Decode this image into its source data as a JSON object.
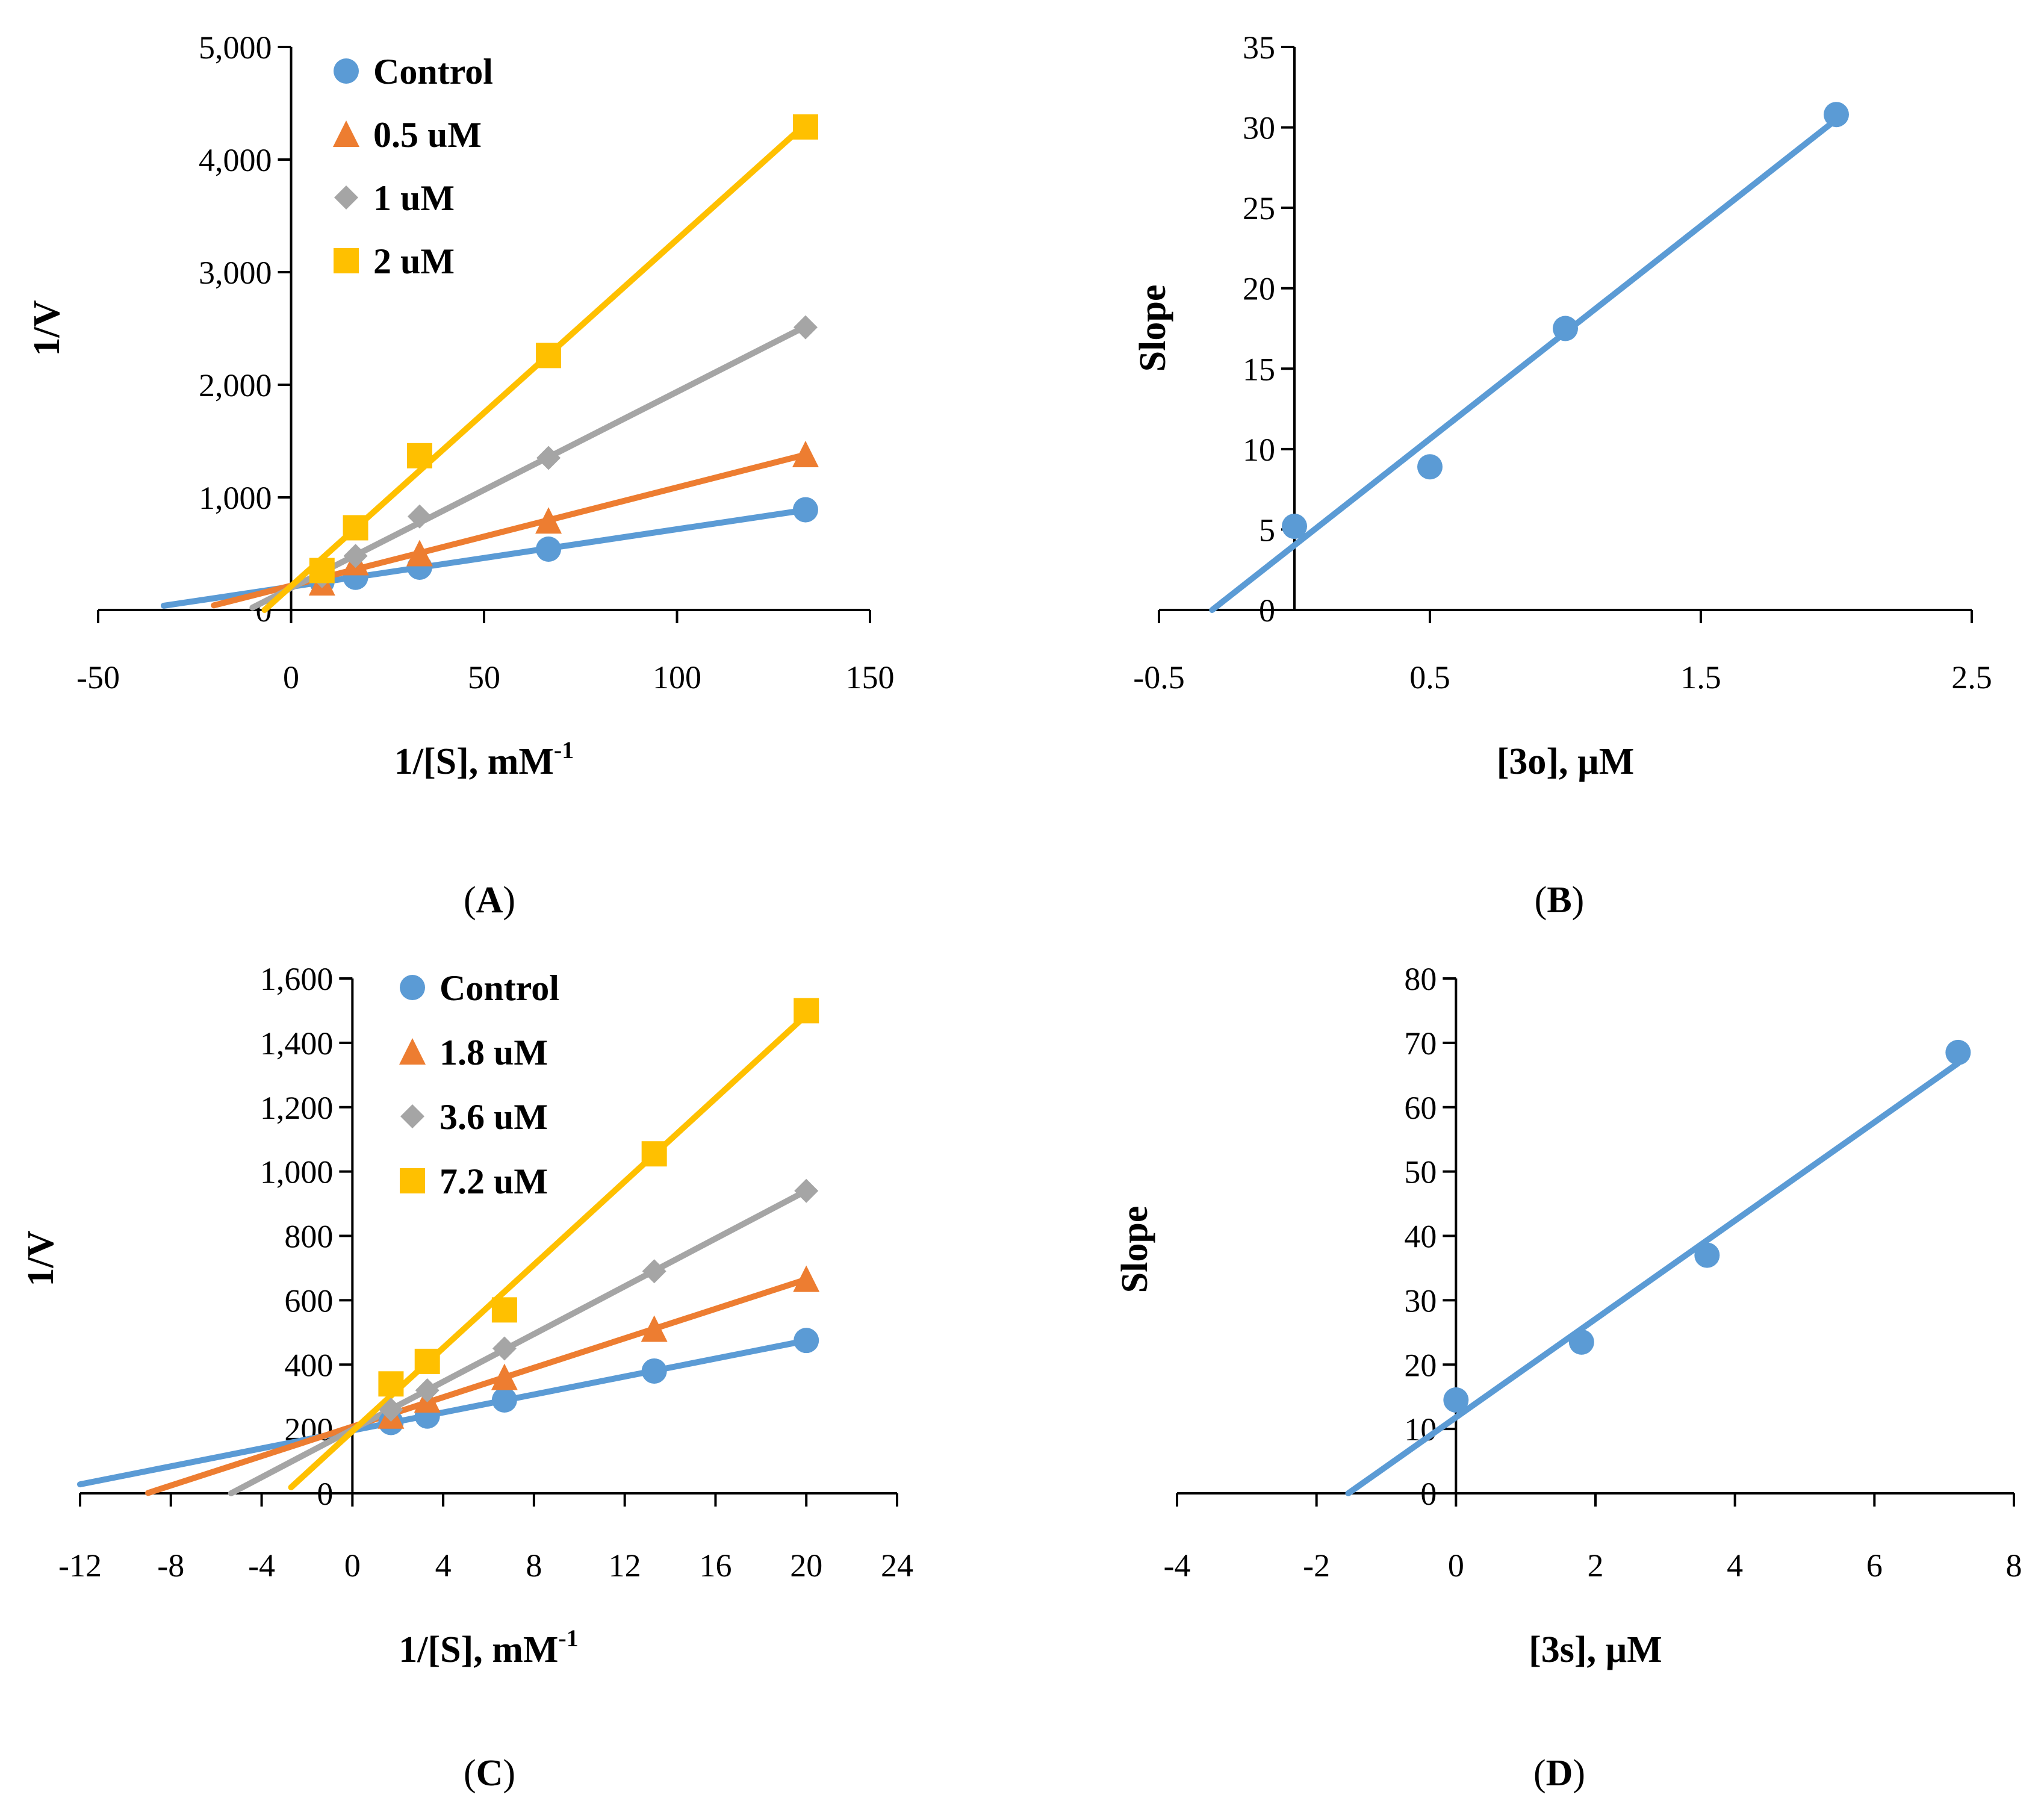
{
  "chart_data": [
    {
      "type": "scatter",
      "panel_label": "(A)",
      "label_open": "(",
      "label_letter": "A",
      "label_close": ")",
      "xlabel": "1/[S], mM",
      "xlabel_sup": "-1",
      "ylabel": "1/V",
      "xlim": [
        -50,
        150
      ],
      "ylim": [
        0,
        5000
      ],
      "x_ticks": [
        -50,
        0,
        50,
        100,
        150
      ],
      "x_tick_labels": [
        "-50",
        "0",
        "50",
        "100",
        "150"
      ],
      "y_ticks": [
        0,
        1000,
        2000,
        3000,
        4000,
        5000
      ],
      "y_tick_labels": [
        "0",
        "1,000",
        "2,000",
        "3,000",
        "4,000",
        "5,000"
      ],
      "legend_position": "top-left",
      "series": [
        {
          "name": "Control",
          "color": "#5B9BD5",
          "marker": "circle",
          "x": [
            8,
            16.7,
            33.3,
            66.7,
            133.3
          ],
          "y": [
            250,
            290,
            380,
            540,
            890
          ],
          "fit": {
            "x": [
              -33,
              133.3
            ]
          }
        },
        {
          "name": "0.5 uM",
          "color": "#ED7D31",
          "marker": "triangle",
          "x": [
            8,
            16.7,
            33.3,
            66.7,
            133.3
          ],
          "y": [
            240,
            420,
            500,
            790,
            1380
          ],
          "fit": {
            "x": [
              -20,
              133.3
            ]
          }
        },
        {
          "name": "1 uM",
          "color": "#A5A5A5",
          "marker": "diamond",
          "x": [
            8,
            16.7,
            33.3,
            66.7,
            133.3
          ],
          "y": [
            300,
            480,
            830,
            1350,
            2510
          ],
          "fit": {
            "x": [
              -10,
              133.3
            ]
          }
        },
        {
          "name": "2 uM",
          "color": "#FFC000",
          "marker": "square",
          "x": [
            8,
            16.7,
            33.3,
            66.7,
            133.3
          ],
          "y": [
            350,
            730,
            1370,
            2260,
            4290
          ],
          "fit": {
            "x": [
              -7,
              133.3
            ]
          }
        }
      ]
    },
    {
      "type": "scatter",
      "panel_label": "(B)",
      "label_open": "(",
      "label_letter": "B",
      "label_close": ")",
      "xlabel": "[3o], µM",
      "xlabel_sup": "",
      "ylabel": "Slope",
      "xlim": [
        -0.5,
        2.5
      ],
      "ylim": [
        0,
        35
      ],
      "x_ticks": [
        -0.5,
        0.5,
        1.5,
        2.5
      ],
      "x_tick_labels": [
        "-0.5",
        "0.5",
        "1.5",
        "2.5"
      ],
      "y_ticks": [
        0,
        5,
        10,
        15,
        20,
        25,
        30,
        35
      ],
      "y_tick_labels": [
        "0",
        "5",
        "10",
        "15",
        "20",
        "25",
        "30",
        "35"
      ],
      "legend_position": "none",
      "series": [
        {
          "name": "",
          "color": "#5B9BD5",
          "marker": "circle",
          "x": [
            0,
            0.5,
            1,
            2
          ],
          "y": [
            5.2,
            8.9,
            17.5,
            30.8
          ],
          "fit": {
            "x": [
              -0.32,
              2
            ]
          }
        }
      ]
    },
    {
      "type": "scatter",
      "panel_label": "(C)",
      "label_open": "(",
      "label_letter": "C",
      "label_close": ")",
      "xlabel": "1/[S], mM",
      "xlabel_sup": "-1",
      "ylabel": "1/V",
      "xlim": [
        -12,
        24
      ],
      "ylim": [
        0,
        1600
      ],
      "x_ticks": [
        -12,
        -8,
        -4,
        0,
        4,
        8,
        12,
        16,
        20,
        24
      ],
      "x_tick_labels": [
        "-12",
        "-8",
        "-4",
        "0",
        "4",
        "8",
        "12",
        "16",
        "20",
        "24"
      ],
      "y_ticks": [
        0,
        200,
        400,
        600,
        800,
        1000,
        1200,
        1400,
        1600
      ],
      "y_tick_labels": [
        "0",
        "200",
        "400",
        "600",
        "800",
        "1,000",
        "1,200",
        "1,400",
        "1,600"
      ],
      "legend_position": "top-left",
      "series": [
        {
          "name": "Control",
          "color": "#5B9BD5",
          "marker": "circle",
          "x": [
            1.7,
            3.3,
            6.7,
            13.3,
            20
          ],
          "y": [
            220,
            240,
            290,
            380,
            475
          ],
          "fit": {
            "x": [
              -12,
              20
            ]
          }
        },
        {
          "name": "1.8 uM",
          "color": "#ED7D31",
          "marker": "triangle",
          "x": [
            1.7,
            3.3,
            6.7,
            13.3,
            20
          ],
          "y": [
            240,
            290,
            360,
            510,
            665
          ],
          "fit": {
            "x": [
              -9,
              20
            ]
          }
        },
        {
          "name": "3.6 uM",
          "color": "#A5A5A5",
          "marker": "diamond",
          "x": [
            1.7,
            3.3,
            6.7,
            13.3,
            20
          ],
          "y": [
            260,
            320,
            450,
            690,
            940
          ],
          "fit": {
            "x": [
              -5.5,
              20
            ]
          }
        },
        {
          "name": "7.2 uM",
          "color": "#FFC000",
          "marker": "square",
          "x": [
            1.7,
            3.3,
            6.7,
            13.3,
            20
          ],
          "y": [
            340,
            410,
            570,
            1055,
            1500
          ],
          "fit": {
            "x": [
              -2.7,
              20
            ]
          }
        }
      ]
    },
    {
      "type": "scatter",
      "panel_label": "(D)",
      "label_open": "(",
      "label_letter": "D",
      "label_close": ")",
      "xlabel": "[3s], µM",
      "xlabel_sup": "",
      "ylabel": "Slope",
      "xlim": [
        -4,
        8
      ],
      "ylim": [
        0,
        80
      ],
      "x_ticks": [
        -4,
        -2,
        0,
        2,
        4,
        6,
        8
      ],
      "x_tick_labels": [
        "-4",
        "-2",
        "0",
        "2",
        "4",
        "6",
        "8"
      ],
      "y_ticks": [
        0,
        10,
        20,
        30,
        40,
        50,
        60,
        70,
        80
      ],
      "y_tick_labels": [
        "0",
        "10",
        "20",
        "30",
        "40",
        "50",
        "60",
        "70",
        "80"
      ],
      "legend_position": "none",
      "series": [
        {
          "name": "",
          "color": "#5B9BD5",
          "marker": "circle",
          "x": [
            0,
            1.8,
            3.6,
            7.2
          ],
          "y": [
            14.5,
            23.5,
            37,
            68.5
          ],
          "fit": {
            "x": [
              -1.55,
              7.2
            ]
          }
        }
      ]
    }
  ]
}
